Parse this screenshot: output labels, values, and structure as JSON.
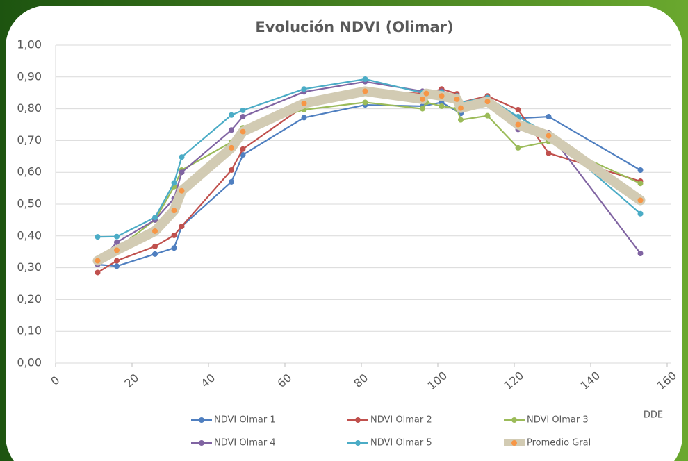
{
  "chart_data": {
    "type": "line",
    "title": "Evolución NDVI (Olimar)",
    "x_label": "DDE",
    "xlim": [
      0,
      160
    ],
    "xticks": [
      0,
      20,
      40,
      60,
      80,
      100,
      120,
      140,
      160
    ],
    "ylim": [
      0,
      1
    ],
    "yticks": [
      {
        "value": 0,
        "label": "0,00"
      },
      {
        "value": 0.1,
        "label": "0,10"
      },
      {
        "value": 0.2,
        "label": "0,20"
      },
      {
        "value": 0.3,
        "label": "0,30"
      },
      {
        "value": 0.4,
        "label": "0,40"
      },
      {
        "value": 0.5,
        "label": "0,50"
      },
      {
        "value": 0.6,
        "label": "0,60"
      },
      {
        "value": 0.7,
        "label": "0,70"
      },
      {
        "value": 0.8,
        "label": "0,80"
      },
      {
        "value": 0.9,
        "label": "0,90"
      },
      {
        "value": 1,
        "label": "1,00"
      }
    ],
    "grid": true,
    "legend": "bottom",
    "series": [
      {
        "name": "NDVI Olmar 1",
        "color": "#4f7fc0",
        "x": [
          11,
          16,
          26,
          31,
          33,
          46,
          49,
          65,
          81,
          96,
          101,
          106,
          113,
          121,
          129,
          153
        ],
        "values": [
          0.31,
          0.305,
          0.343,
          0.362,
          0.43,
          0.57,
          0.655,
          0.772,
          0.812,
          0.808,
          0.82,
          0.785,
          0.835,
          0.77,
          0.775,
          0.607
        ]
      },
      {
        "name": "NDVI Olmar 2",
        "color": "#c0504d",
        "x": [
          11,
          16,
          26,
          31,
          33,
          46,
          49,
          65,
          81,
          97,
          101,
          105,
          106,
          113,
          121,
          129,
          153
        ],
        "values": [
          0.285,
          0.322,
          0.367,
          0.402,
          0.43,
          0.607,
          0.673,
          0.808,
          0.856,
          0.847,
          0.862,
          0.847,
          0.82,
          0.84,
          0.797,
          0.66,
          0.572
        ]
      },
      {
        "name": "NDVI Olmar 3",
        "color": "#9bbb59",
        "x": [
          11,
          16,
          26,
          31,
          33,
          46,
          49,
          65,
          81,
          96,
          97,
          101,
          105,
          106,
          113,
          121,
          129,
          153
        ],
        "values": [
          0.315,
          0.36,
          0.45,
          0.555,
          0.607,
          0.695,
          0.74,
          0.797,
          0.82,
          0.8,
          0.82,
          0.808,
          0.8,
          0.765,
          0.778,
          0.677,
          0.697,
          0.565
        ]
      },
      {
        "name": "NDVI Olmar 4",
        "color": "#8064a2",
        "x": [
          11,
          16,
          26,
          31,
          33,
          46,
          49,
          65,
          81,
          96,
          101,
          105,
          106,
          113,
          121,
          129,
          153
        ],
        "values": [
          0.31,
          0.38,
          0.45,
          0.518,
          0.6,
          0.733,
          0.775,
          0.853,
          0.885,
          0.855,
          0.855,
          0.84,
          0.8,
          0.82,
          0.735,
          0.725,
          0.345
        ]
      },
      {
        "name": "NDVI Olmar 5",
        "color": "#4bacc6",
        "x": [
          11,
          16,
          26,
          31,
          33,
          46,
          49,
          65,
          81,
          96,
          101,
          105,
          106,
          113,
          121,
          129,
          153
        ],
        "values": [
          0.397,
          0.398,
          0.458,
          0.567,
          0.648,
          0.78,
          0.795,
          0.862,
          0.893,
          0.85,
          0.852,
          0.84,
          0.82,
          0.835,
          0.775,
          0.72,
          0.47
        ]
      },
      {
        "name": "Promedio Gral",
        "color": "#d2cbb3",
        "marker_color": "#f79646",
        "line_width": 14,
        "x": [
          11,
          16,
          26,
          31,
          33,
          46,
          49,
          65,
          81,
          96,
          97,
          101,
          105,
          106,
          113,
          121,
          129,
          153
        ],
        "values": [
          0.322,
          0.355,
          0.415,
          0.48,
          0.542,
          0.677,
          0.728,
          0.817,
          0.855,
          0.83,
          0.848,
          0.84,
          0.83,
          0.802,
          0.823,
          0.75,
          0.715,
          0.512
        ]
      }
    ]
  }
}
